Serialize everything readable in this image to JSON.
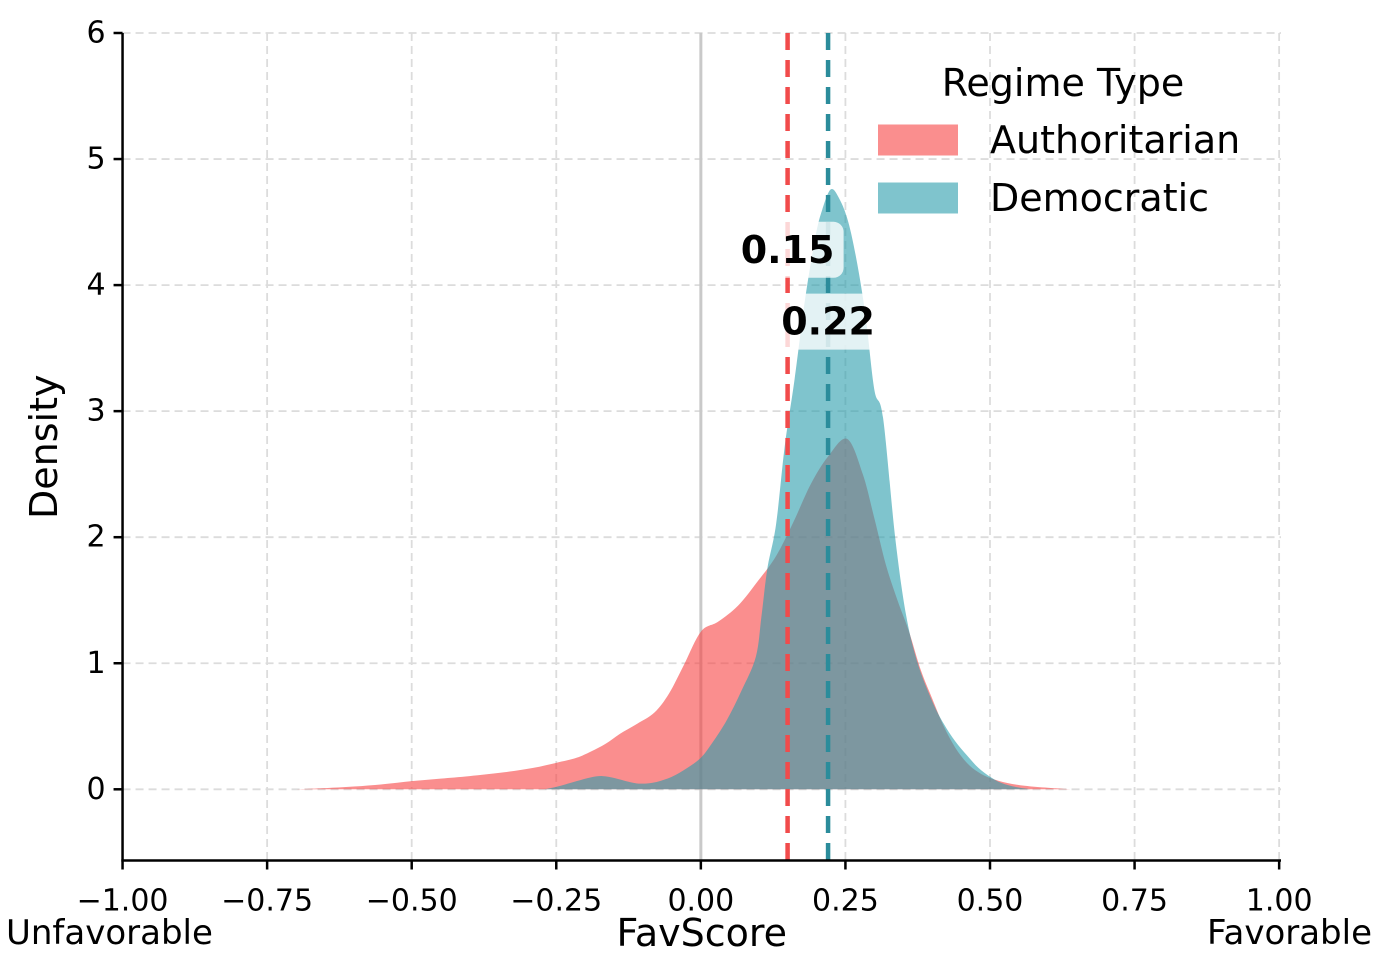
{
  "chart_data": {
    "type": "area",
    "subtype": "kde-density",
    "title": "",
    "xlabel": "FavScore",
    "ylabel": "Density",
    "x_end_labels": {
      "left": "Unfavorable",
      "right": "Favorable"
    },
    "xlim": [
      -1.0,
      1.0
    ],
    "ylim": [
      -0.6,
      6.0
    ],
    "xticks": [
      -1.0,
      -0.75,
      -0.5,
      -0.25,
      0.0,
      0.25,
      0.5,
      0.75,
      1.0
    ],
    "xtick_labels": [
      "−1.00",
      "−0.75",
      "−0.50",
      "−0.25",
      "0.00",
      "0.25",
      "0.50",
      "0.75",
      "1.00"
    ],
    "yticks": [
      0,
      1,
      2,
      3,
      4,
      5,
      6
    ],
    "ytick_labels": [
      "0",
      "1",
      "2",
      "3",
      "4",
      "5",
      "6"
    ],
    "grid": {
      "on": true,
      "color": "#dcdcdc",
      "style": "dashed"
    },
    "reference_line": {
      "x": 0.0,
      "color": "#c9c9c9",
      "style": "solid"
    },
    "legend": {
      "title": "Regime Type",
      "position": "upper right",
      "entries": [
        {
          "label": "Authoritarian",
          "swatch_color": "#FA8E8E"
        },
        {
          "label": "Democratic",
          "swatch_color": "#7FC4CD"
        }
      ]
    },
    "series": [
      {
        "name": "Authoritarian",
        "fill_color": "#F74343",
        "fill_alpha": 0.6,
        "median_line": {
          "x": 0.15,
          "label": "0.15",
          "line_color": "#F14B4B",
          "label_color": "#F25555",
          "label_density": 4.28
        },
        "points": [
          [
            -0.7,
            0
          ],
          [
            -0.655,
            0.008
          ],
          [
            -0.6,
            0.022
          ],
          [
            -0.55,
            0.04
          ],
          [
            -0.5,
            0.065
          ],
          [
            -0.45,
            0.085
          ],
          [
            -0.4,
            0.105
          ],
          [
            -0.34,
            0.135
          ],
          [
            -0.29,
            0.17
          ],
          [
            -0.25,
            0.21
          ],
          [
            -0.215,
            0.25
          ],
          [
            -0.19,
            0.3
          ],
          [
            -0.165,
            0.36
          ],
          [
            -0.14,
            0.44
          ],
          [
            -0.11,
            0.52
          ],
          [
            -0.08,
            0.61
          ],
          [
            -0.055,
            0.76
          ],
          [
            -0.03,
            0.98
          ],
          [
            0.0,
            1.25
          ],
          [
            0.03,
            1.33
          ],
          [
            0.065,
            1.46
          ],
          [
            0.1,
            1.66
          ],
          [
            0.13,
            1.85
          ],
          [
            0.16,
            2.12
          ],
          [
            0.19,
            2.42
          ],
          [
            0.22,
            2.64
          ],
          [
            0.253,
            2.78
          ],
          [
            0.28,
            2.5
          ],
          [
            0.3,
            2.15
          ],
          [
            0.32,
            1.78
          ],
          [
            0.34,
            1.5
          ],
          [
            0.36,
            1.25
          ],
          [
            0.38,
            0.95
          ],
          [
            0.4,
            0.72
          ],
          [
            0.42,
            0.5
          ],
          [
            0.44,
            0.33
          ],
          [
            0.46,
            0.21
          ],
          [
            0.48,
            0.135
          ],
          [
            0.5,
            0.09
          ],
          [
            0.53,
            0.05
          ],
          [
            0.56,
            0.028
          ],
          [
            0.6,
            0.012
          ],
          [
            0.64,
            0
          ]
        ]
      },
      {
        "name": "Democratic",
        "fill_color": "#2A9DAC",
        "fill_alpha": 0.6,
        "median_line": {
          "x": 0.22,
          "label": "0.22",
          "line_color": "#2B8C9B",
          "label_color": "#2A8696",
          "label_density": 3.71
        },
        "points": [
          [
            -0.27,
            0
          ],
          [
            -0.245,
            0.025
          ],
          [
            -0.215,
            0.065
          ],
          [
            -0.19,
            0.095
          ],
          [
            -0.17,
            0.105
          ],
          [
            -0.148,
            0.088
          ],
          [
            -0.125,
            0.06
          ],
          [
            -0.105,
            0.045
          ],
          [
            -0.08,
            0.055
          ],
          [
            -0.05,
            0.1
          ],
          [
            -0.025,
            0.165
          ],
          [
            0.0,
            0.25
          ],
          [
            0.02,
            0.37
          ],
          [
            0.045,
            0.55
          ],
          [
            0.07,
            0.78
          ],
          [
            0.095,
            1.05
          ],
          [
            0.105,
            1.38
          ],
          [
            0.115,
            1.75
          ],
          [
            0.13,
            2.1
          ],
          [
            0.145,
            2.72
          ],
          [
            0.162,
            3.25
          ],
          [
            0.18,
            3.88
          ],
          [
            0.198,
            4.38
          ],
          [
            0.21,
            4.6
          ],
          [
            0.225,
            4.76
          ],
          [
            0.24,
            4.68
          ],
          [
            0.255,
            4.5
          ],
          [
            0.27,
            4.18
          ],
          [
            0.285,
            3.75
          ],
          [
            0.3,
            3.17
          ],
          [
            0.315,
            2.95
          ],
          [
            0.336,
            2.0
          ],
          [
            0.355,
            1.38
          ],
          [
            0.375,
            1.0
          ],
          [
            0.4,
            0.7
          ],
          [
            0.42,
            0.52
          ],
          [
            0.44,
            0.38
          ],
          [
            0.46,
            0.27
          ],
          [
            0.48,
            0.17
          ],
          [
            0.5,
            0.1
          ],
          [
            0.52,
            0.05
          ],
          [
            0.545,
            0.018
          ],
          [
            0.57,
            0
          ]
        ]
      }
    ],
    "annotation_box": {
      "fill": "#ffffff",
      "alpha": 0.78,
      "radius": 10
    }
  }
}
